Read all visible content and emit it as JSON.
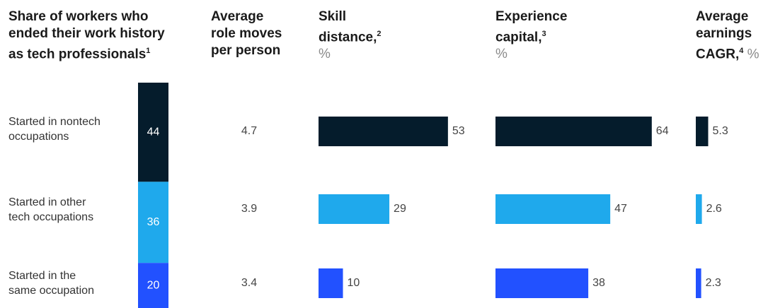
{
  "headers": {
    "share": {
      "line1": "Share of workers who",
      "line2": "ended their work history",
      "line3": "as tech professionals",
      "note": "1"
    },
    "moves": {
      "line1": "Average",
      "line2": "role moves",
      "line3": "per person"
    },
    "skill": {
      "line1": "Skill",
      "line2": "distance,",
      "note": "2",
      "unit": "%"
    },
    "experience": {
      "line1": "Experience",
      "line2": "capital,",
      "note": "3",
      "unit": "%"
    },
    "earnings": {
      "line1": "Average",
      "line2": "earnings",
      "line3": "CAGR,",
      "note": "4",
      "unit": "%"
    }
  },
  "rows": [
    {
      "line1": "Started in nontech",
      "line2": "occupations"
    },
    {
      "line1": "Started in other",
      "line2": "tech occupations"
    },
    {
      "line1": "Started in the",
      "line2": "same occupation"
    }
  ],
  "colors": {
    "nontech": "#051c2c",
    "other_tech": "#1fa9ec",
    "same": "#2251ff"
  },
  "chart_data": {
    "type": "bar",
    "categories": [
      "Started in nontech occupations",
      "Started in other tech occupations",
      "Started in the same occupation"
    ],
    "series": [
      {
        "name": "Share of workers who ended their work history as tech professionals",
        "values": [
          44,
          36,
          20
        ]
      },
      {
        "name": "Average role moves per person",
        "values": [
          4.7,
          3.9,
          3.4
        ],
        "labels": [
          "4.7",
          "3.9",
          "3.4"
        ]
      },
      {
        "name": "Skill distance, %",
        "values": [
          53,
          29,
          10
        ]
      },
      {
        "name": "Experience capital, %",
        "values": [
          64,
          47,
          38
        ]
      },
      {
        "name": "Average earnings CAGR, %",
        "values": [
          5.3,
          2.6,
          2.3
        ],
        "labels": [
          "5.3",
          "2.6",
          "2.3"
        ]
      }
    ]
  }
}
